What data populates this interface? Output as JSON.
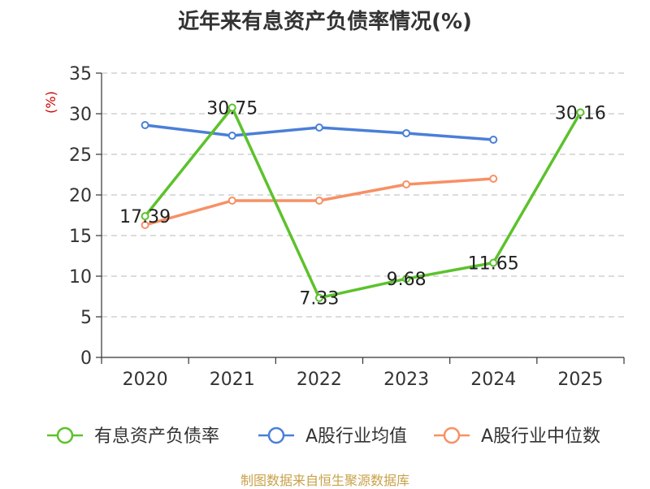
{
  "chart_data": {
    "type": "line",
    "title": "近年来有息资产负债率情况(%)",
    "unit": "(%)",
    "categories": [
      "2020",
      "2021",
      "2022",
      "2023",
      "2024",
      "2025"
    ],
    "ylim": [
      0,
      35
    ],
    "yticks": [
      0,
      5,
      10,
      15,
      20,
      25,
      30,
      35
    ],
    "grid": true,
    "legend_position": "bottom",
    "series": [
      {
        "name": "有息资产负债率",
        "color": "#5cc22c",
        "values": [
          17.39,
          30.75,
          7.33,
          9.68,
          11.65,
          30.16
        ],
        "labels": [
          "17.39",
          "30.75",
          "7.33",
          "9.68",
          "11.65",
          "30.16"
        ]
      },
      {
        "name": "A股行业均值",
        "color": "#4a7fd8",
        "values": [
          28.6,
          27.3,
          28.3,
          27.6,
          26.8,
          null
        ]
      },
      {
        "name": "A股行业中位数",
        "color": "#f79065",
        "values": [
          16.3,
          19.3,
          19.3,
          21.3,
          22.0,
          null
        ]
      }
    ]
  },
  "source": "制图数据来自恒生聚源数据库"
}
